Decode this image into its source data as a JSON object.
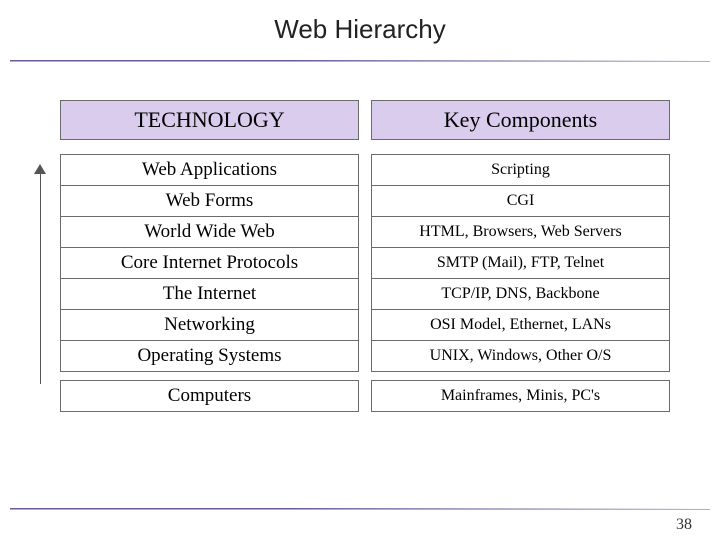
{
  "title": "Web Hierarchy",
  "headers": {
    "left": "TECHNOLOGY",
    "right": "Key Components"
  },
  "rows": [
    {
      "tech": "Web Applications",
      "comp": "Scripting"
    },
    {
      "tech": "Web Forms",
      "comp": "CGI"
    },
    {
      "tech": "World Wide Web",
      "comp": "HTML, Browsers, Web Servers"
    },
    {
      "tech": "Core Internet Protocols",
      "comp": "SMTP (Mail), FTP, Telnet"
    },
    {
      "tech": "The Internet",
      "comp": "TCP/IP, DNS, Backbone"
    },
    {
      "tech": "Networking",
      "comp": "OSI Model, Ethernet, LANs"
    },
    {
      "tech": "Operating Systems",
      "comp": "UNIX, Windows, Other O/S"
    },
    {
      "tech": "Computers",
      "comp": "Mainframes, Minis, PC's"
    }
  ],
  "colors": {
    "header_bg": "#d9ccec",
    "border": "#6b6b6b",
    "accent": "#6a5a9a",
    "background": "#ffffff"
  },
  "page_number": "38",
  "font": {
    "title_family": "Verdana",
    "title_size_pt": 20,
    "body_family": "Times New Roman",
    "tech_size_pt": 14,
    "comp_size_pt": 12
  }
}
